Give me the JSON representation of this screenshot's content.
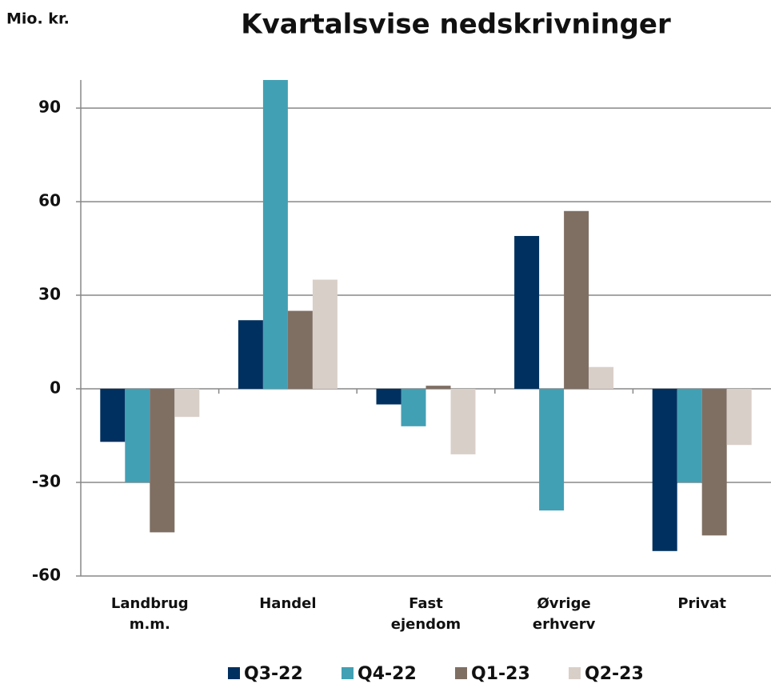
{
  "chart_data": {
    "type": "bar",
    "title": "Kvartalsvise nedskrivninger",
    "y_label": "Mio. kr.",
    "categories": [
      "Landbrug m.m.",
      "Handel",
      "Fast ejendom",
      "Øvrige erhverv",
      "Privat"
    ],
    "series": [
      {
        "name": "Q3-22",
        "color": "#00305f",
        "values": [
          -17,
          22,
          -5,
          49,
          -52
        ]
      },
      {
        "name": "Q4-22",
        "color": "#42a0b4",
        "values": [
          -30,
          99,
          -12,
          -39,
          -30
        ]
      },
      {
        "name": "Q1-23",
        "color": "#7f6f63",
        "values": [
          -46,
          25,
          1,
          57,
          -47
        ]
      },
      {
        "name": "Q2-23",
        "color": "#d9cfc9",
        "values": [
          -9,
          35,
          -21,
          7,
          -18
        ]
      }
    ],
    "ylim": [
      -60,
      99
    ],
    "yticks": [
      -60,
      -30,
      0,
      30,
      60,
      90
    ],
    "grid": true
  }
}
